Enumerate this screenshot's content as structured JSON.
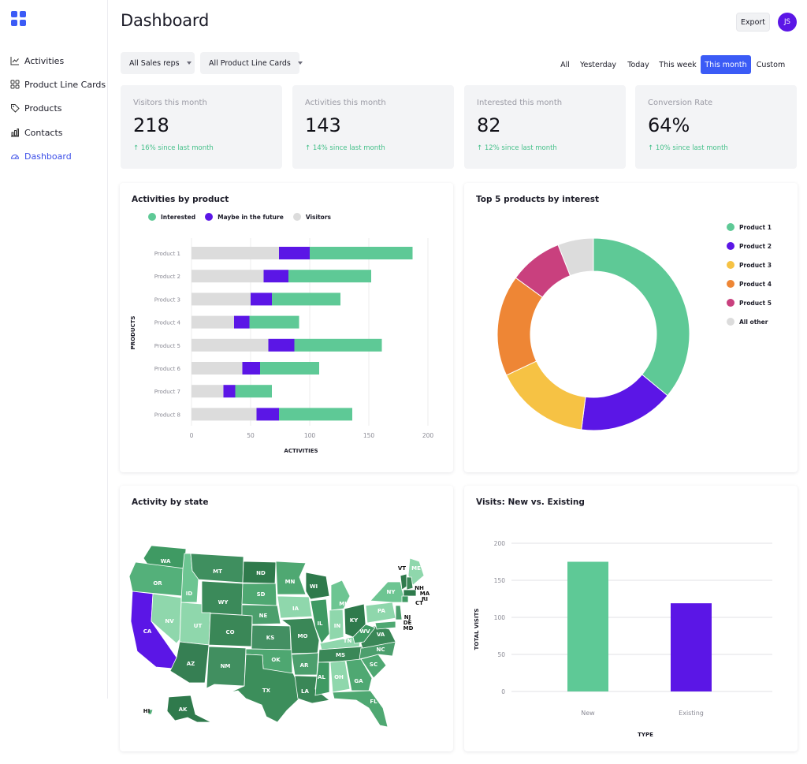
{
  "app": {
    "logo": "grid-logo-icon"
  },
  "sidebar": {
    "items": [
      {
        "label": "Activities",
        "icon": "trend-line-icon",
        "active": false
      },
      {
        "label": "Product Line Cards",
        "icon": "grid-icon",
        "active": false
      },
      {
        "label": "Products",
        "icon": "tag-icon",
        "active": false
      },
      {
        "label": "Contacts",
        "icon": "bar-chart-icon",
        "active": false
      },
      {
        "label": "Dashboard",
        "icon": "gauge-icon",
        "active": true
      }
    ]
  },
  "header": {
    "title": "Dashboard",
    "export_label": "Export",
    "avatar_initials": "JS"
  },
  "filters": {
    "sales_reps": "All Sales reps",
    "product_line_cards": "All Product Line Cards"
  },
  "date_range": {
    "options": [
      "All",
      "Yesterday",
      "Today",
      "This week",
      "This month",
      "Custom"
    ],
    "selected": "This month"
  },
  "stats": [
    {
      "label": "Visitors this month",
      "value": "218",
      "delta": "↑ 16% since last month"
    },
    {
      "label": "Activities this month",
      "value": "143",
      "delta": "↑ 14% since last month"
    },
    {
      "label": "Interested this month",
      "value": "82",
      "delta": "↑ 12% since last month"
    },
    {
      "label": "Conversion Rate",
      "value": "64%",
      "delta": "↑ 10% since last month"
    }
  ],
  "colors": {
    "interested": "#5ec996",
    "maybe": "#5b16e6",
    "visitors": "#dcdcdc",
    "accent": "#3b5bf6",
    "positive": "#45c08a"
  },
  "chart_data": [
    {
      "type": "bar",
      "orientation": "horizontal",
      "stacked": true,
      "title": "Activities by product",
      "xlabel": "ACTIVITIES",
      "ylabel": "PRODUCTS",
      "xlim": [
        0,
        200
      ],
      "xticks": [
        0,
        50,
        100,
        150,
        200
      ],
      "categories": [
        "Product 1",
        "Product 2",
        "Product 3",
        "Product 4",
        "Product 5",
        "Product 6",
        "Product 7",
        "Product 8"
      ],
      "series": [
        {
          "name": "Visitors",
          "color": "#dcdcdc",
          "values": [
            74,
            61,
            50,
            36,
            65,
            43,
            27,
            55
          ]
        },
        {
          "name": "Maybe in the future",
          "color": "#5b16e6",
          "values": [
            26,
            21,
            18,
            13,
            22,
            15,
            10,
            19
          ]
        },
        {
          "name": "Interested",
          "color": "#5ec996",
          "values": [
            87,
            70,
            58,
            42,
            74,
            50,
            31,
            62
          ]
        }
      ],
      "legend": [
        "Interested",
        "Maybe in the future",
        "Visitors"
      ],
      "grid": true
    },
    {
      "type": "pie",
      "donut": true,
      "title": "Top 5 products by interest",
      "legend_position": "right",
      "slices": [
        {
          "label": "Product 1",
          "value": 36,
          "color": "#5ec996"
        },
        {
          "label": "Product 2",
          "value": 16,
          "color": "#5b16e6"
        },
        {
          "label": "Product 3",
          "value": 16,
          "color": "#f6c244"
        },
        {
          "label": "Product 4",
          "value": 17,
          "color": "#ee8635"
        },
        {
          "label": "Product 5",
          "value": 9,
          "color": "#c9407e"
        },
        {
          "label": "All other",
          "value": 6,
          "color": "#dcdcdc"
        }
      ]
    },
    {
      "type": "bar",
      "title": "Visits: New vs. Existing",
      "xlabel": "TYPE",
      "ylabel": "TOTAL VISITS",
      "ylim": [
        0,
        200
      ],
      "yticks": [
        0,
        50,
        100,
        150,
        200
      ],
      "categories": [
        "New",
        "Existing"
      ],
      "values": [
        175,
        119
      ],
      "colors": [
        "#5ec996",
        "#5b16e6"
      ],
      "grid": true
    }
  ],
  "map": {
    "title": "Activity by state",
    "states": [
      "WA",
      "OR",
      "CA",
      "ID",
      "NV",
      "MT",
      "WY",
      "UT",
      "AZ",
      "CO",
      "NM",
      "ND",
      "SD",
      "NE",
      "KS",
      "OK",
      "TX",
      "MN",
      "IA",
      "MO",
      "AR",
      "LA",
      "WI",
      "IL",
      "MI",
      "IN",
      "KY",
      "TN",
      "MS",
      "AL",
      "OH",
      "WV",
      "VA",
      "PA",
      "NY",
      "VT",
      "ME",
      "NH",
      "MA",
      "RI",
      "CT",
      "NJ",
      "DE",
      "MD",
      "NC",
      "SC",
      "GA",
      "FL",
      "HI",
      "AK"
    ]
  }
}
